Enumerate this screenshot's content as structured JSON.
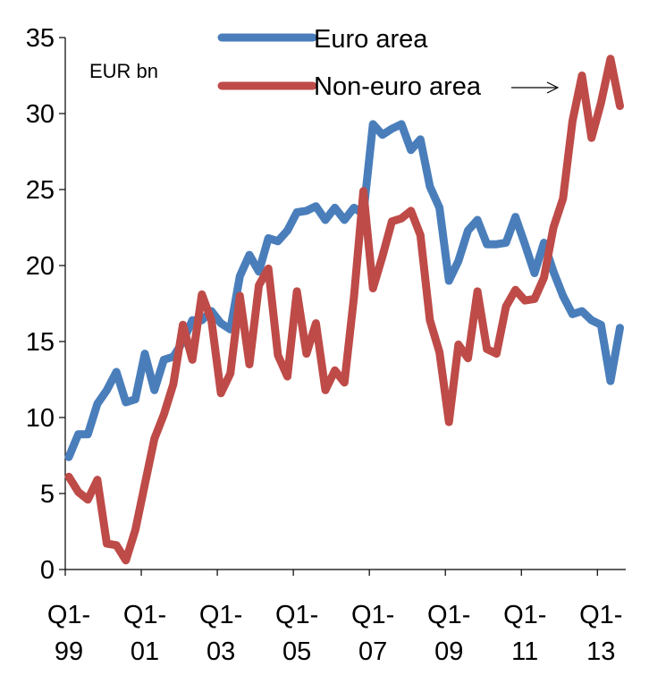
{
  "chart_data": {
    "type": "line",
    "title": "",
    "xlabel": "",
    "ylabel": "",
    "unit_label": "EUR bn",
    "ylim": [
      0,
      35
    ],
    "yticks": [
      0,
      5,
      10,
      15,
      20,
      25,
      30,
      35
    ],
    "x_start_quarter": "Q1-99",
    "x_tick_labels": [
      {
        "q": 0,
        "line1": "Q1-",
        "line2": "99"
      },
      {
        "q": 8,
        "line1": "Q1-",
        "line2": "01"
      },
      {
        "q": 16,
        "line1": "Q1-",
        "line2": "03"
      },
      {
        "q": 24,
        "line1": "Q1-",
        "line2": "05"
      },
      {
        "q": 32,
        "line1": "Q1-",
        "line2": "07"
      },
      {
        "q": 40,
        "line1": "Q1-",
        "line2": "09"
      },
      {
        "q": 48,
        "line1": "Q1-",
        "line2": "11"
      },
      {
        "q": 56,
        "line1": "Q1-",
        "line2": "13"
      }
    ],
    "legend_position": "top",
    "series": [
      {
        "name": "Euro area",
        "color": "#4a7ebb",
        "values": [
          7.4,
          8.9,
          8.9,
          10.9,
          11.8,
          13.0,
          11.0,
          11.2,
          14.2,
          11.8,
          13.8,
          14.0,
          15.0,
          16.4,
          16.4,
          17.0,
          16.2,
          15.8,
          19.3,
          20.7,
          19.6,
          21.8,
          21.6,
          22.3,
          23.5,
          23.6,
          23.9,
          23.0,
          23.8,
          23.0,
          23.8,
          23.4,
          29.3,
          28.6,
          29.0,
          29.3,
          27.6,
          28.3,
          25.2,
          23.8,
          19.0,
          20.3,
          22.3,
          23.0,
          21.4,
          21.4,
          21.5,
          23.2,
          21.4,
          19.5,
          21.5,
          19.6,
          18.0,
          16.8,
          17.0,
          16.4,
          16.1,
          12.4,
          15.9
        ],
        "show_legend": true
      },
      {
        "name": "Non-euro area",
        "color": "#be4b48",
        "values": [
          6.1,
          5.1,
          4.6,
          5.9,
          1.7,
          1.6,
          0.6,
          2.6,
          5.6,
          8.6,
          10.2,
          12.2,
          16.1,
          13.8,
          18.1,
          16.4,
          11.6,
          12.9,
          18.0,
          13.5,
          18.7,
          19.8,
          14.1,
          12.7,
          18.3,
          14.2,
          16.2,
          11.8,
          13.1,
          12.3,
          17.9,
          24.9,
          18.5,
          20.6,
          22.9,
          23.1,
          23.6,
          22.0,
          16.4,
          14.3,
          9.7,
          14.8,
          13.9,
          18.3,
          14.5,
          14.2,
          17.3,
          18.4,
          17.7,
          17.8,
          19.2,
          22.5,
          24.4,
          29.5,
          32.5,
          28.4,
          30.7,
          33.6,
          30.5
        ],
        "show_legend": true
      }
    ]
  }
}
